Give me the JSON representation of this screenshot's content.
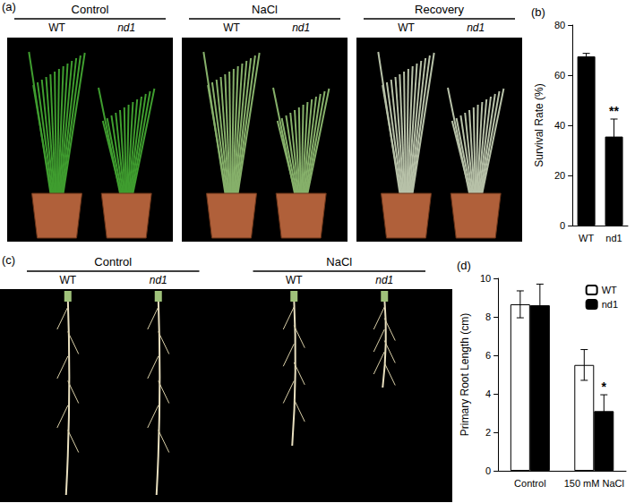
{
  "panels": [
    {
      "label": "(a)",
      "groups": [
        {
          "title": "Control",
          "items": [
            "WT",
            "nd1"
          ]
        },
        {
          "title": "NaCl",
          "items": [
            "WT",
            "nd1"
          ]
        },
        {
          "title": "Recovery",
          "items": [
            "WT",
            "nd1"
          ]
        }
      ]
    },
    {
      "label": "(c)",
      "groups": [
        {
          "title": "Control",
          "items": [
            "WT",
            "nd1"
          ]
        },
        {
          "title": "NaCl",
          "items": [
            "WT",
            "nd1"
          ]
        }
      ]
    }
  ],
  "chart_data": [
    {
      "type": "bar",
      "title": "(b)",
      "categories": [
        "WT",
        "nd1"
      ],
      "values": [
        67.5,
        35.5
      ],
      "errors": [
        1.2,
        7
      ],
      "color": "#000000",
      "ylabel": "Survival Rate (%)",
      "ylim": [
        0,
        80
      ],
      "yticks": [
        0,
        20,
        40,
        60,
        80
      ],
      "annotations": [
        {
          "category": "nd1",
          "text": "**"
        }
      ]
    },
    {
      "type": "bar",
      "title": "(d)",
      "categories": [
        "Control",
        "150 mM NaCl"
      ],
      "series": [
        {
          "name": "WT",
          "color": "#ffffff",
          "values": [
            8.65,
            5.5
          ],
          "errors": [
            0.7,
            0.8
          ]
        },
        {
          "name": "nd1",
          "color": "#000000",
          "values": [
            8.6,
            3.1
          ],
          "errors": [
            1.1,
            0.85
          ]
        }
      ],
      "ylabel": "Primary Root Length (cm)",
      "ylim": [
        0,
        10
      ],
      "yticks": [
        0,
        2,
        4,
        6,
        8,
        10
      ],
      "legend": "top-right",
      "annotations": [
        {
          "category": "150 mM NaCl",
          "series": "nd1",
          "text": "*"
        }
      ]
    }
  ]
}
